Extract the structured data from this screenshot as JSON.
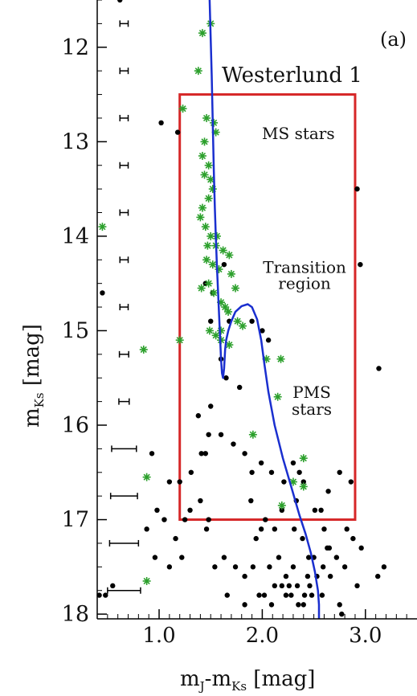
{
  "chart_data": {
    "type": "scatter",
    "panel_label": "(a)",
    "cluster_name": "Westerlund 1",
    "xlabel": "m_J-m_Ks [mag]",
    "ylabel": "m_Ks [mag]",
    "xlim": [
      0.4,
      3.5
    ],
    "ylim": [
      18.05,
      11.5
    ],
    "y_inverted": true,
    "x_ticks": [
      {
        "value": 1.0,
        "label": "1.0"
      },
      {
        "value": 2.0,
        "label": "2.0"
      },
      {
        "value": 3.0,
        "label": "3.0"
      }
    ],
    "y_ticks": [
      {
        "value": 12,
        "label": "12"
      },
      {
        "value": 13,
        "label": "13"
      },
      {
        "value": 14,
        "label": "14"
      },
      {
        "value": 15,
        "label": "15"
      },
      {
        "value": 16,
        "label": "16"
      },
      {
        "value": 17,
        "label": "17"
      },
      {
        "value": 18,
        "label": "18"
      }
    ],
    "region_box": {
      "x": [
        1.2,
        2.9
      ],
      "y": [
        12.5,
        17.0
      ],
      "color": "#d62728"
    },
    "region_labels": [
      {
        "text": "MS stars",
        "x": 2.35,
        "y": 12.97
      },
      {
        "text": "Transition",
        "x": 2.41,
        "y": 14.39
      },
      {
        "text": "region",
        "x": 2.41,
        "y": 14.56
      },
      {
        "text": "PMS",
        "x": 2.48,
        "y": 15.71
      },
      {
        "text": "stars",
        "x": 2.48,
        "y": 15.89
      }
    ],
    "isochrone": {
      "color": "#1a2fcf",
      "x": [
        1.49,
        1.5,
        1.51,
        1.52,
        1.53,
        1.54,
        1.55,
        1.56,
        1.57,
        1.58,
        1.59,
        1.6,
        1.61,
        1.62,
        1.63,
        1.64,
        1.65,
        1.67,
        1.7,
        1.74,
        1.8,
        1.86,
        1.9,
        1.95,
        1.99,
        2.02,
        2.06,
        2.12,
        2.2,
        2.28,
        2.36,
        2.42,
        2.47,
        2.51,
        2.54,
        2.55,
        2.55
      ],
      "y": [
        11.5,
        11.9,
        12.3,
        12.8,
        13.3,
        13.7,
        14.0,
        14.3,
        14.55,
        14.8,
        15.05,
        15.3,
        15.45,
        15.5,
        15.4,
        15.2,
        15.1,
        15.0,
        14.9,
        14.8,
        14.74,
        14.72,
        14.75,
        14.88,
        15.1,
        15.35,
        15.65,
        16.0,
        16.35,
        16.65,
        16.95,
        17.15,
        17.35,
        17.55,
        17.75,
        17.9,
        18.05
      ]
    },
    "error_bars": {
      "x_center": 0.66,
      "points": [
        {
          "y": 11.75,
          "xerr": 0.04
        },
        {
          "y": 12.25,
          "xerr": 0.04
        },
        {
          "y": 12.75,
          "xerr": 0.04
        },
        {
          "y": 13.25,
          "xerr": 0.04
        },
        {
          "y": 13.75,
          "xerr": 0.04
        },
        {
          "y": 14.25,
          "xerr": 0.04
        },
        {
          "y": 14.75,
          "xerr": 0.04
        },
        {
          "y": 15.25,
          "xerr": 0.045
        },
        {
          "y": 15.75,
          "xerr": 0.05
        },
        {
          "y": 16.25,
          "xerr": 0.12
        },
        {
          "y": 16.75,
          "xerr": 0.13
        },
        {
          "y": 17.25,
          "xerr": 0.14
        },
        {
          "y": 17.75,
          "xerr": 0.16
        }
      ]
    },
    "series": [
      {
        "marker": "dot",
        "color": "#000000",
        "x": [
          0.62,
          1.02,
          1.18,
          2.92,
          2.95,
          1.63,
          1.45,
          1.52,
          1.68,
          1.9,
          2.0,
          2.06,
          1.6,
          1.65,
          1.78,
          1.5,
          1.6,
          3.13,
          1.38,
          1.48,
          1.41,
          1.31,
          1.2,
          1.1,
          0.93,
          1.45,
          1.72,
          1.83,
          1.99,
          2.09,
          2.21,
          2.3,
          2.36,
          2.4,
          2.33,
          2.51,
          2.57,
          2.64,
          2.75,
          2.86,
          1.4,
          1.3,
          1.48,
          1.9,
          1.89,
          2.19,
          2.31,
          2.6,
          2.39,
          2.12,
          2.03,
          1.99,
          1.94,
          1.25,
          1.46,
          1.16,
          1.05,
          0.98,
          0.88,
          2.82,
          2.88,
          2.96,
          2.65,
          2.72,
          2.59,
          2.5,
          2.45,
          2.3,
          2.16,
          2.07,
          1.91,
          1.83,
          1.74,
          1.63,
          1.54,
          1.22,
          1.1,
          0.96,
          2.23,
          2.34,
          2.44,
          2.28,
          2.12,
          1.97,
          1.83,
          1.66,
          2.48,
          2.66,
          2.92,
          3.12,
          3.18,
          2.75,
          2.58,
          2.41,
          2.23,
          2.09,
          2.02,
          2.19,
          2.35,
          2.77,
          2.8,
          2.63,
          2.53,
          2.46,
          2.4,
          2.26,
          0.55,
          0.48,
          0.45,
          1.5,
          0.42
        ],
        "y": [
          11.5,
          12.8,
          12.9,
          13.5,
          14.3,
          14.3,
          14.5,
          14.6,
          14.9,
          14.9,
          15.0,
          15.1,
          15.3,
          15.5,
          15.6,
          15.8,
          16.1,
          15.4,
          15.9,
          16.1,
          16.3,
          16.5,
          16.6,
          16.6,
          16.3,
          16.3,
          16.2,
          16.3,
          16.4,
          16.5,
          16.6,
          16.4,
          16.5,
          16.6,
          16.8,
          16.9,
          16.9,
          16.7,
          16.5,
          16.6,
          16.8,
          16.9,
          17.0,
          16.5,
          16.8,
          16.9,
          17.1,
          17.1,
          17.2,
          17.1,
          17.0,
          17.1,
          17.2,
          17.0,
          17.1,
          17.2,
          17.0,
          16.9,
          17.1,
          17.1,
          17.2,
          17.3,
          17.3,
          17.4,
          17.5,
          17.4,
          17.4,
          17.5,
          17.4,
          17.5,
          17.5,
          17.6,
          17.5,
          17.4,
          17.5,
          17.4,
          17.5,
          17.4,
          17.6,
          17.7,
          17.6,
          17.8,
          17.7,
          17.8,
          17.9,
          17.8,
          17.8,
          17.6,
          17.7,
          17.6,
          17.5,
          17.9,
          17.8,
          17.8,
          17.8,
          17.9,
          17.8,
          17.7,
          17.9,
          18.0,
          17.5,
          17.3,
          17.6,
          17.7,
          17.9,
          17.7,
          17.7,
          17.8,
          14.6,
          14.9,
          17.8
        ]
      },
      {
        "marker": "asterisk",
        "color": "#2ca02c",
        "x": [
          1.5,
          1.42,
          1.38,
          1.23,
          1.46,
          1.53,
          1.55,
          1.44,
          1.42,
          1.48,
          1.44,
          1.5,
          1.52,
          1.48,
          1.42,
          1.4,
          1.45,
          1.5,
          1.56,
          1.47,
          1.55,
          1.62,
          1.68,
          1.46,
          1.52,
          1.58,
          1.7,
          1.48,
          1.41,
          1.53,
          1.6,
          1.64,
          1.67,
          1.76,
          1.81,
          1.49,
          1.55,
          1.6,
          1.2,
          0.85,
          2.04,
          2.18,
          2.15,
          2.4,
          2.3,
          2.4,
          2.19,
          1.91,
          0.45,
          0.88,
          0.88,
          1.6,
          1.68,
          1.74
        ],
        "y": [
          11.75,
          11.85,
          12.25,
          12.65,
          12.75,
          12.8,
          12.9,
          13.0,
          13.15,
          13.25,
          13.35,
          13.4,
          13.5,
          13.6,
          13.7,
          13.8,
          13.9,
          14.0,
          14.0,
          14.1,
          14.1,
          14.15,
          14.2,
          14.25,
          14.3,
          14.35,
          14.4,
          14.5,
          14.55,
          14.6,
          14.7,
          14.75,
          14.8,
          14.9,
          14.95,
          15.0,
          15.05,
          15.1,
          15.1,
          15.2,
          15.3,
          15.3,
          15.7,
          16.35,
          16.6,
          16.65,
          16.85,
          16.1,
          13.9,
          16.55,
          17.65,
          15.0,
          15.15,
          14.55
        ]
      }
    ]
  }
}
